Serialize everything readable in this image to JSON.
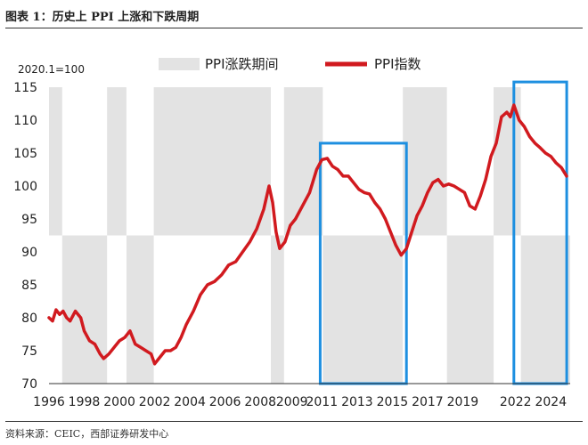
{
  "figure": {
    "title": "图表 1：历史上 PPI 上涨和下跌周期",
    "source": "资料来源：CEIC，西部证券研发中心"
  },
  "colors": {
    "line": "#d11a1f",
    "shade": "#e3e3e3",
    "highlight_box": "#1d8fe0",
    "axis": "#333333",
    "text": "#222222"
  },
  "chart_data": {
    "type": "line",
    "unit_label": "2020.1=100",
    "ylim": [
      70,
      115
    ],
    "yticks": [
      70,
      75,
      80,
      85,
      90,
      95,
      100,
      105,
      110,
      115
    ],
    "xlim": [
      1996,
      2025.6
    ],
    "xticks": [
      "1996",
      "1998",
      "2000",
      "2002",
      "2004",
      "2006",
      "2008",
      "2009",
      "2011",
      "2013",
      "2015",
      "2017",
      "2019",
      "2022",
      "2024"
    ],
    "xtick_positions": [
      1996,
      1998,
      2000,
      2002,
      2004,
      2006,
      2008,
      2009.8,
      2011.5,
      2013.5,
      2015.5,
      2017.5,
      2019.5,
      2022.5,
      2024.5
    ],
    "legend": {
      "position": "top",
      "items": [
        {
          "label": "PPI涨跌期间",
          "kind": "area"
        },
        {
          "label": "PPI指数",
          "kind": "line"
        }
      ]
    },
    "shaded_periods": [
      {
        "start": 1996.0,
        "end": 1996.75,
        "phase": "up"
      },
      {
        "start": 1996.75,
        "end": 1999.3,
        "phase": "down"
      },
      {
        "start": 1999.3,
        "end": 2000.4,
        "phase": "up"
      },
      {
        "start": 2000.4,
        "end": 2001.95,
        "phase": "down"
      },
      {
        "start": 2001.95,
        "end": 2008.6,
        "phase": "up"
      },
      {
        "start": 2008.6,
        "end": 2009.35,
        "phase": "down"
      },
      {
        "start": 2009.35,
        "end": 2011.55,
        "phase": "up"
      },
      {
        "start": 2011.55,
        "end": 2016.1,
        "phase": "down"
      },
      {
        "start": 2016.1,
        "end": 2018.6,
        "phase": "up"
      },
      {
        "start": 2018.6,
        "end": 2021.25,
        "phase": "down"
      },
      {
        "start": 2021.25,
        "end": 2022.8,
        "phase": "up"
      },
      {
        "start": 2022.8,
        "end": 2025.6,
        "phase": "down"
      }
    ],
    "highlight_boxes": [
      {
        "start": 2011.4,
        "end": 2016.3,
        "ymin": 70,
        "ymax": 106.5
      },
      {
        "start": 2022.4,
        "end": 2025.4,
        "ymin": 70,
        "ymax": 115.8
      }
    ],
    "series": [
      {
        "name": "PPI指数",
        "x": [
          1996.0,
          1996.2,
          1996.4,
          1996.6,
          1996.8,
          1997.0,
          1997.2,
          1997.5,
          1997.8,
          1998.0,
          1998.3,
          1998.6,
          1998.9,
          1999.1,
          1999.4,
          1999.7,
          2000.0,
          2000.3,
          2000.6,
          2000.9,
          2001.2,
          2001.5,
          2001.8,
          2002.0,
          2002.3,
          2002.6,
          2002.9,
          2003.2,
          2003.5,
          2003.8,
          2004.2,
          2004.6,
          2005.0,
          2005.4,
          2005.8,
          2006.2,
          2006.6,
          2007.0,
          2007.4,
          2007.8,
          2008.2,
          2008.5,
          2008.7,
          2008.9,
          2009.1,
          2009.4,
          2009.7,
          2010.0,
          2010.4,
          2010.8,
          2011.2,
          2011.5,
          2011.8,
          2012.1,
          2012.4,
          2012.7,
          2013.0,
          2013.3,
          2013.6,
          2013.9,
          2014.2,
          2014.5,
          2014.8,
          2015.1,
          2015.4,
          2015.7,
          2016.0,
          2016.3,
          2016.6,
          2016.9,
          2017.2,
          2017.5,
          2017.8,
          2018.1,
          2018.4,
          2018.7,
          2019.0,
          2019.3,
          2019.6,
          2019.9,
          2020.2,
          2020.5,
          2020.8,
          2021.1,
          2021.4,
          2021.7,
          2022.0,
          2022.2,
          2022.4,
          2022.7,
          2023.0,
          2023.3,
          2023.6,
          2023.9,
          2024.2,
          2024.5,
          2024.8,
          2025.1,
          2025.4
        ],
        "values": [
          80.0,
          79.5,
          81.2,
          80.5,
          81.0,
          80.0,
          79.5,
          81.0,
          80.0,
          78.0,
          76.5,
          76.0,
          74.5,
          73.8,
          74.5,
          75.5,
          76.5,
          77.0,
          78.0,
          76.0,
          75.5,
          75.0,
          74.5,
          73.0,
          74.0,
          75.0,
          75.0,
          75.5,
          77.0,
          79.0,
          81.0,
          83.5,
          85.0,
          85.5,
          86.5,
          88.0,
          88.5,
          90.0,
          91.5,
          93.5,
          96.5,
          100.0,
          97.5,
          93.0,
          90.5,
          91.5,
          94.0,
          95.0,
          97.0,
          99.0,
          102.5,
          104.0,
          104.2,
          103.0,
          102.5,
          101.5,
          101.5,
          100.5,
          99.5,
          99.0,
          98.8,
          97.5,
          96.5,
          95.0,
          93.0,
          91.0,
          89.5,
          90.5,
          93.0,
          95.5,
          97.0,
          99.0,
          100.5,
          101.0,
          100.0,
          100.3,
          100.0,
          99.5,
          99.0,
          97.0,
          96.5,
          98.5,
          101.0,
          104.5,
          106.5,
          110.5,
          111.2,
          110.5,
          112.3,
          110.0,
          109.0,
          107.5,
          106.5,
          105.8,
          105.0,
          104.5,
          103.5,
          102.8,
          101.5
        ]
      }
    ]
  }
}
